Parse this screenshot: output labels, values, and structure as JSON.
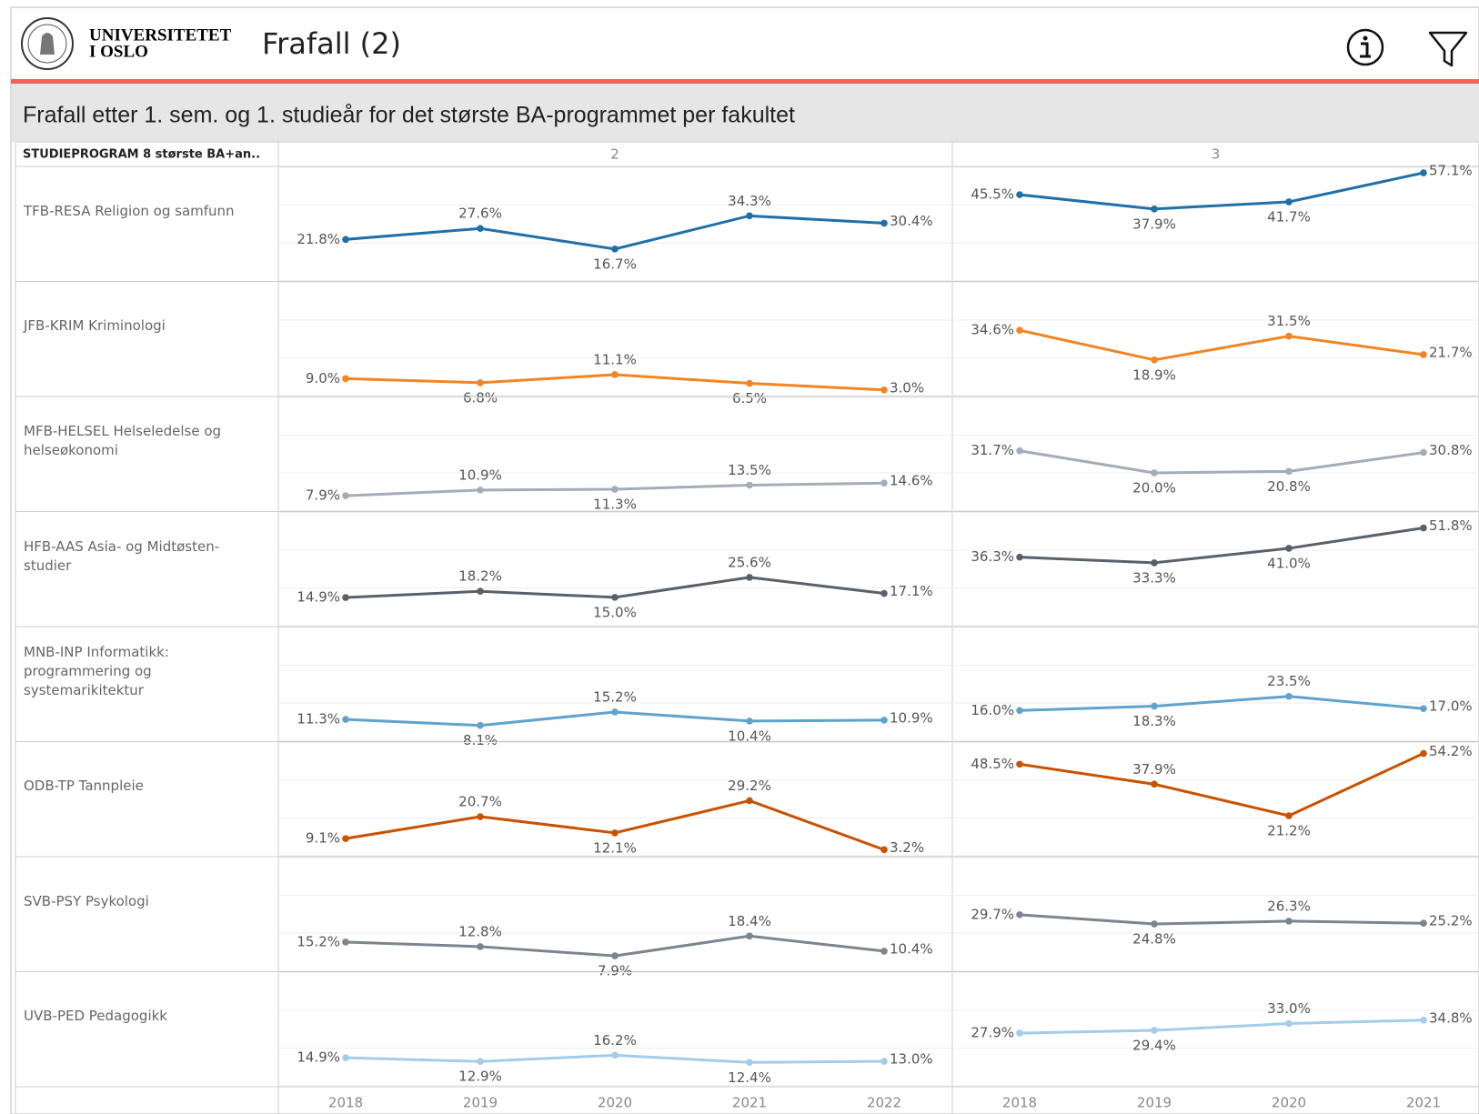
{
  "header": {
    "logo_line1": "UNIVERSITETET",
    "logo_line2": "I OSLO",
    "title": "Frafall (2)"
  },
  "chart_data": {
    "type": "line",
    "title": "Frafall etter 1. sem. og 1. studieår for det største BA-programmet per fakultet",
    "row_header": "STUDIEPROGRAM 8 største BA+an..",
    "ylim": [
      0,
      60
    ],
    "yticks": [
      0,
      20,
      40,
      60
    ],
    "grid": true,
    "panels": [
      {
        "label": "2",
        "x": [
          2018,
          2019,
          2020,
          2021,
          2022
        ]
      },
      {
        "label": "3",
        "x": [
          2018,
          2019,
          2020,
          2021
        ]
      }
    ],
    "series": [
      {
        "name": "TFB-RESA Religion og samfunn",
        "color": "#1f6fa8",
        "values": [
          [
            21.8,
            27.6,
            16.7,
            34.3,
            30.4
          ],
          [
            45.5,
            37.9,
            41.7,
            57.1
          ]
        ],
        "value_labels": [
          [
            "21.8%",
            "27.6%",
            "16.7%",
            "34.3%",
            "30.4%"
          ],
          [
            "45.5%",
            "37.9%",
            "41.7%",
            "57.1%"
          ]
        ]
      },
      {
        "name": "JFB-KRIM Kriminologi",
        "color": "#f28522",
        "values": [
          [
            9.0,
            6.8,
            11.1,
            6.5,
            3.0
          ],
          [
            34.6,
            18.9,
            31.5,
            21.7
          ]
        ],
        "value_labels": [
          [
            "9.0%",
            "6.8%",
            "11.1%",
            "6.5%",
            "3.0%"
          ],
          [
            "34.6%",
            "18.9%",
            "31.5%",
            "21.7%"
          ]
        ]
      },
      {
        "name": "MFB-HELSEL Helseledelse og helseøkonomi",
        "color": "#a3acb9",
        "values": [
          [
            7.9,
            10.9,
            11.3,
            13.5,
            14.6
          ],
          [
            31.7,
            20.0,
            20.8,
            30.8
          ]
        ],
        "value_labels": [
          [
            "7.9%",
            "10.9%",
            "11.3%",
            "13.5%",
            "14.6%"
          ],
          [
            "31.7%",
            "20.0%",
            "20.8%",
            "30.8%"
          ]
        ]
      },
      {
        "name": "HFB-AAS Asia- og Midtøsten-studier",
        "color": "#57606c",
        "values": [
          [
            14.9,
            18.2,
            15.0,
            25.6,
            17.1
          ],
          [
            36.3,
            33.3,
            41.0,
            51.8
          ]
        ],
        "value_labels": [
          [
            "14.9%",
            "18.2%",
            "15.0%",
            "25.6%",
            "17.1%"
          ],
          [
            "36.3%",
            "33.3%",
            "41.0%",
            "51.8%"
          ]
        ]
      },
      {
        "name": "MNB-INP Informatikk: programmering og systemarikitektur",
        "color": "#5fa2ce",
        "values": [
          [
            11.3,
            8.1,
            15.2,
            10.4,
            10.9
          ],
          [
            16.0,
            18.3,
            23.5,
            17.0
          ]
        ],
        "value_labels": [
          [
            "11.3%",
            "8.1%",
            "15.2%",
            "10.4%",
            "10.9%"
          ],
          [
            "16.0%",
            "18.3%",
            "23.5%",
            "17.0%"
          ]
        ]
      },
      {
        "name": "ODB-TP Tannpleie",
        "color": "#c85200",
        "values": [
          [
            9.1,
            20.7,
            12.1,
            29.2,
            3.2
          ],
          [
            48.5,
            37.9,
            21.2,
            54.2
          ]
        ],
        "value_labels": [
          [
            "9.1%",
            "20.7%",
            "12.1%",
            "29.2%",
            "3.2%"
          ],
          [
            "48.5%",
            "37.9%",
            "21.2%",
            "54.2%"
          ]
        ]
      },
      {
        "name": "SVB-PSY Psykologi",
        "color": "#7b848f",
        "values": [
          [
            15.2,
            12.8,
            7.9,
            18.4,
            10.4
          ],
          [
            29.7,
            24.8,
            26.3,
            25.2
          ]
        ],
        "value_labels": [
          [
            "15.2%",
            "12.8%",
            "7.9%",
            "18.4%",
            "10.4%"
          ],
          [
            "29.7%",
            "24.8%",
            "26.3%",
            "25.2%"
          ]
        ]
      },
      {
        "name": "UVB-PED Pedagogikk",
        "color": "#a3cce9",
        "values": [
          [
            14.9,
            12.9,
            16.2,
            12.4,
            13.0
          ],
          [
            27.9,
            29.4,
            33.0,
            34.8
          ]
        ],
        "value_labels": [
          [
            "14.9%",
            "12.9%",
            "16.2%",
            "12.4%",
            "13.0%"
          ],
          [
            "27.9%",
            "29.4%",
            "33.0%",
            "34.8%"
          ]
        ]
      }
    ]
  }
}
